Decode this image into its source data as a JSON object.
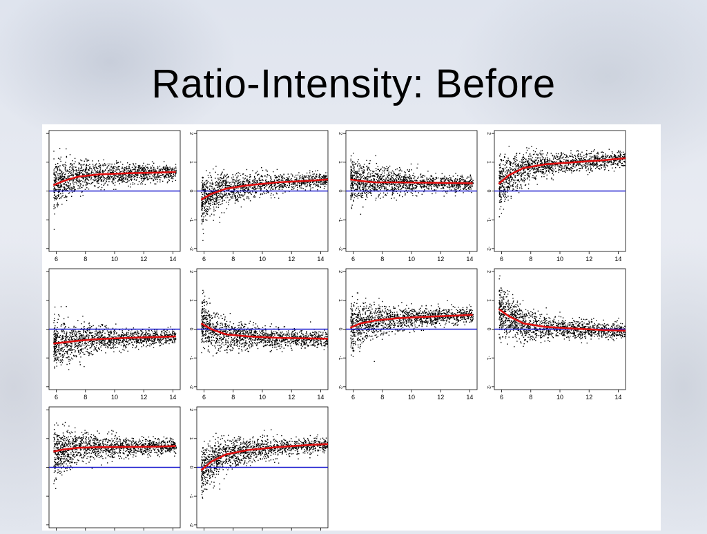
{
  "slide": {
    "title": "Ratio-Intensity: Before"
  },
  "colors": {
    "points": "#000000",
    "loess_curve": "#e01010",
    "zero_line": "#1c1ccf"
  },
  "chart_data": [
    {
      "type": "scatter",
      "x_ticks": [
        6,
        8,
        10,
        12,
        14
      ],
      "y_ticks": [
        -2,
        -1,
        0,
        1,
        2
      ],
      "xlim": [
        5.5,
        14.5
      ],
      "ylim": [
        -2.1,
        2.1
      ],
      "show_y_labels": false,
      "curve": {
        "x": [
          5.8,
          6.5,
          7.5,
          9,
          11,
          13,
          14.2
        ],
        "y": [
          0.2,
          0.35,
          0.5,
          0.58,
          0.62,
          0.64,
          0.66
        ]
      },
      "zero_line": 0
    },
    {
      "type": "scatter",
      "x_ticks": [
        6,
        8,
        10,
        12,
        14
      ],
      "y_ticks": [
        -2,
        -1,
        0,
        1,
        2
      ],
      "xlim": [
        5.5,
        14.5
      ],
      "ylim": [
        -2.1,
        2.1
      ],
      "show_y_labels": true,
      "curve": {
        "x": [
          5.8,
          6.5,
          7.5,
          9,
          11,
          13,
          14.5
        ],
        "y": [
          -0.3,
          -0.1,
          0.08,
          0.2,
          0.3,
          0.35,
          0.4
        ]
      },
      "zero_line": 0
    },
    {
      "type": "scatter",
      "x_ticks": [
        6,
        8,
        10,
        12,
        14
      ],
      "y_ticks": [
        -2,
        -1,
        0,
        1,
        2
      ],
      "xlim": [
        5.5,
        14.5
      ],
      "ylim": [
        -2.1,
        2.1
      ],
      "show_y_labels": true,
      "curve": {
        "x": [
          5.8,
          6.5,
          7.5,
          9,
          11,
          13,
          14.2
        ],
        "y": [
          0.4,
          0.35,
          0.3,
          0.3,
          0.29,
          0.28,
          0.27
        ]
      },
      "zero_line": 0
    },
    {
      "type": "scatter",
      "x_ticks": [
        6,
        8,
        10,
        12,
        14
      ],
      "y_ticks": [
        -2,
        -1,
        0,
        1,
        2
      ],
      "xlim": [
        5.5,
        14.5
      ],
      "ylim": [
        -2.1,
        2.1
      ],
      "show_y_labels": true,
      "curve": {
        "x": [
          5.8,
          6.5,
          7.5,
          9,
          11,
          13,
          14.5
        ],
        "y": [
          0.25,
          0.55,
          0.8,
          0.93,
          1.0,
          1.07,
          1.14
        ]
      },
      "zero_line": 0
    },
    {
      "type": "scatter",
      "x_ticks": [
        6,
        8,
        10,
        12,
        14
      ],
      "y_ticks": [
        -2,
        -1,
        0,
        1,
        2
      ],
      "xlim": [
        5.5,
        14.5
      ],
      "ylim": [
        -2.1,
        2.1
      ],
      "show_y_labels": false,
      "curve": {
        "x": [
          5.8,
          6.5,
          7.5,
          9,
          11,
          13,
          14.2
        ],
        "y": [
          -0.5,
          -0.46,
          -0.4,
          -0.34,
          -0.3,
          -0.27,
          -0.25
        ]
      },
      "zero_line": 0
    },
    {
      "type": "scatter",
      "x_ticks": [
        6,
        8,
        10,
        12,
        14
      ],
      "y_ticks": [
        -2,
        -1,
        0,
        1,
        2
      ],
      "xlim": [
        5.5,
        14.5
      ],
      "ylim": [
        -2.1,
        2.1
      ],
      "show_y_labels": true,
      "curve": {
        "x": [
          5.8,
          6.5,
          7.5,
          9,
          11,
          13,
          14.5
        ],
        "y": [
          0.2,
          0.0,
          -0.18,
          -0.25,
          -0.3,
          -0.32,
          -0.33
        ]
      },
      "zero_line": 0
    },
    {
      "type": "scatter",
      "x_ticks": [
        6,
        8,
        10,
        12,
        14
      ],
      "y_ticks": [
        -2,
        -1,
        0,
        1,
        2
      ],
      "xlim": [
        5.5,
        14.5
      ],
      "ylim": [
        -2.1,
        2.1
      ],
      "show_y_labels": true,
      "curve": {
        "x": [
          5.8,
          6.5,
          7.5,
          9,
          11,
          13,
          14.2
        ],
        "y": [
          0.05,
          0.2,
          0.3,
          0.38,
          0.43,
          0.47,
          0.5
        ]
      },
      "zero_line": 0
    },
    {
      "type": "scatter",
      "x_ticks": [
        6,
        8,
        10,
        12,
        14
      ],
      "y_ticks": [
        -2,
        -1,
        0,
        1,
        2
      ],
      "xlim": [
        5.5,
        14.5
      ],
      "ylim": [
        -2.1,
        2.1
      ],
      "show_y_labels": true,
      "curve": {
        "x": [
          5.8,
          6.5,
          7.5,
          9,
          11,
          13,
          14.5
        ],
        "y": [
          0.7,
          0.45,
          0.2,
          0.08,
          0.02,
          -0.03,
          -0.05
        ]
      },
      "zero_line": 0
    },
    {
      "type": "scatter",
      "x_ticks": [],
      "y_ticks": [
        -2,
        -1,
        0,
        1,
        2
      ],
      "xlim": [
        5.5,
        14.5
      ],
      "ylim": [
        -2.1,
        2.1
      ],
      "show_y_labels": false,
      "curve": {
        "x": [
          5.8,
          6.5,
          7.5,
          9,
          11,
          13,
          14.2
        ],
        "y": [
          0.55,
          0.62,
          0.68,
          0.7,
          0.71,
          0.72,
          0.74
        ]
      },
      "zero_line": 0
    },
    {
      "type": "scatter",
      "x_ticks": [],
      "y_ticks": [
        -2,
        -1,
        0,
        1,
        2
      ],
      "xlim": [
        5.5,
        14.5
      ],
      "ylim": [
        -2.1,
        2.1
      ],
      "show_y_labels": true,
      "curve": {
        "x": [
          5.8,
          6.5,
          7.5,
          9,
          11,
          13,
          14.5
        ],
        "y": [
          -0.1,
          0.2,
          0.45,
          0.6,
          0.7,
          0.77,
          0.81
        ]
      },
      "zero_line": 0
    }
  ]
}
